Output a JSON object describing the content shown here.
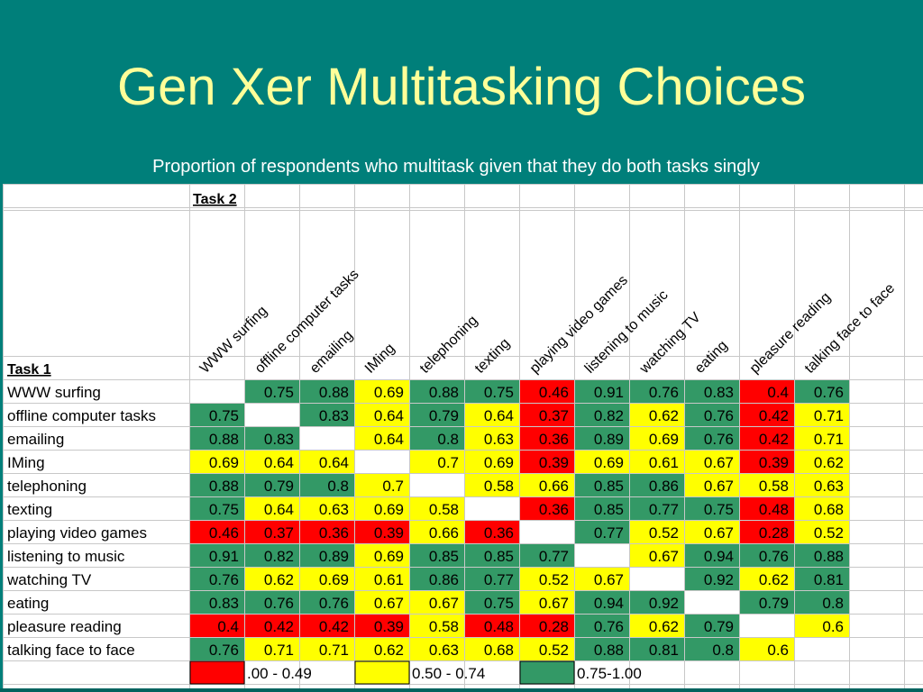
{
  "slide": {
    "title": "Gen Xer Multitasking Choices",
    "subtitle": "Proportion of respondents who multitask given that they do both tasks singly"
  },
  "chart_data": {
    "type": "heatmap",
    "row_header": "Task 1",
    "column_header": "Task 2",
    "tasks": [
      "WWW surfing",
      "offline computer tasks",
      "emailing",
      "IMing",
      "telephoning",
      "texting",
      "playing video games",
      "listening to music",
      "watching TV",
      "eating",
      "pleasure reading",
      "talking face to face"
    ],
    "values": [
      [
        null,
        0.75,
        0.88,
        0.69,
        0.88,
        0.75,
        0.46,
        0.91,
        0.76,
        0.83,
        0.4,
        0.76
      ],
      [
        0.75,
        null,
        0.83,
        0.64,
        0.79,
        0.64,
        0.37,
        0.82,
        0.62,
        0.76,
        0.42,
        0.71
      ],
      [
        0.88,
        0.83,
        null,
        0.64,
        0.8,
        0.63,
        0.36,
        0.89,
        0.69,
        0.76,
        0.42,
        0.71
      ],
      [
        0.69,
        0.64,
        0.64,
        null,
        0.7,
        0.69,
        0.39,
        0.69,
        0.61,
        0.67,
        0.39,
        0.62
      ],
      [
        0.88,
        0.79,
        0.8,
        0.7,
        null,
        0.58,
        0.66,
        0.85,
        0.86,
        0.67,
        0.58,
        0.63
      ],
      [
        0.75,
        0.64,
        0.63,
        0.69,
        0.58,
        null,
        0.36,
        0.85,
        0.77,
        0.75,
        0.48,
        0.68
      ],
      [
        0.46,
        0.37,
        0.36,
        0.39,
        0.66,
        0.36,
        null,
        0.77,
        0.52,
        0.67,
        0.28,
        0.52
      ],
      [
        0.91,
        0.82,
        0.89,
        0.69,
        0.85,
        0.85,
        0.77,
        null,
        0.67,
        0.94,
        0.76,
        0.88
      ],
      [
        0.76,
        0.62,
        0.69,
        0.61,
        0.86,
        0.77,
        0.52,
        0.67,
        null,
        0.92,
        0.62,
        0.81
      ],
      [
        0.83,
        0.76,
        0.76,
        0.67,
        0.67,
        0.75,
        0.67,
        0.94,
        0.92,
        null,
        0.79,
        0.8
      ],
      [
        0.4,
        0.42,
        0.42,
        0.39,
        0.58,
        0.48,
        0.28,
        0.76,
        0.62,
        0.79,
        null,
        0.6
      ],
      [
        0.76,
        0.71,
        0.71,
        0.62,
        0.63,
        0.68,
        0.52,
        0.88,
        0.81,
        0.8,
        0.6,
        null
      ]
    ],
    "legend": [
      {
        "label": ".00 - 0.49",
        "min": 0,
        "max": 0.49,
        "color": "#ff0000"
      },
      {
        "label": "0.50 - 0.74",
        "min": 0.5,
        "max": 0.74,
        "color": "#ffff00"
      },
      {
        "label": "0.75-1.00",
        "min": 0.75,
        "max": 1.0,
        "color": "#339966"
      }
    ],
    "legend_placement": "bottom"
  }
}
